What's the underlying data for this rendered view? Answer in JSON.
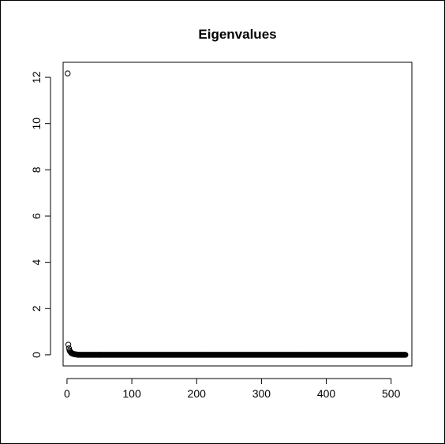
{
  "chart_data": {
    "type": "scatter",
    "title": "Eigenvalues",
    "xlabel": "",
    "ylabel": "",
    "xlim": [
      -6,
      532
    ],
    "ylim": [
      -0.48,
      12.65
    ],
    "xticks": [
      0,
      100,
      200,
      300,
      400,
      500
    ],
    "yticks": [
      0,
      2,
      4,
      6,
      8,
      10,
      12
    ],
    "grid": false,
    "marker": "open-circle",
    "color": "#000000",
    "n_points": 522,
    "leading_values": [
      12.17,
      0.44,
      0.28,
      0.19,
      0.14,
      0.1,
      0.08,
      0.06,
      0.05,
      0.04,
      0.03,
      0.025,
      0.02,
      0.016,
      0.013,
      0.01
    ],
    "tail_value": 0.0
  }
}
